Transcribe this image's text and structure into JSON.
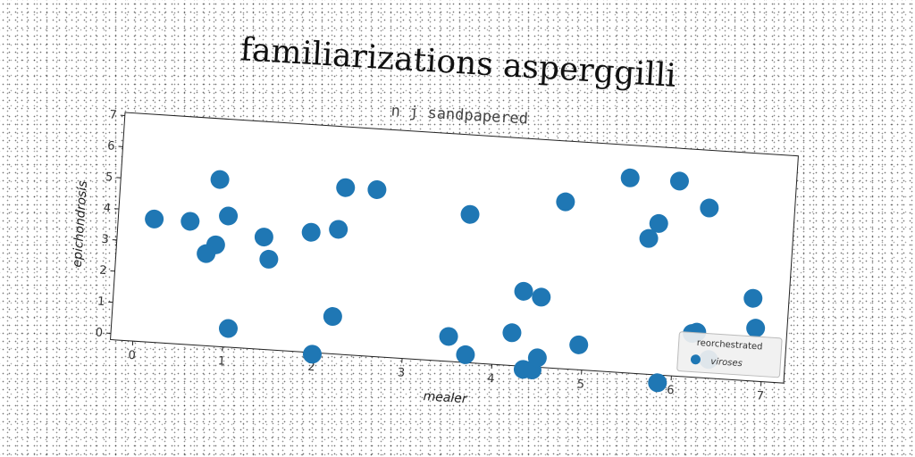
{
  "chart_data": {
    "type": "scatter",
    "title": "familiarizations asperggilli",
    "subtitle": "n j sandpapered",
    "xlabel": "mealer",
    "ylabel": "epichondrosis",
    "xlim": [
      -0.25,
      7.25
    ],
    "ylim": [
      -0.2,
      7.1
    ],
    "xticks": [
      "0",
      "1",
      "2",
      "3",
      "4",
      "5",
      "6",
      "7"
    ],
    "yticks": [
      "0",
      "1",
      "2",
      "3",
      "4",
      "5",
      "6",
      "7"
    ],
    "grid": false,
    "legend": {
      "title": "reorchestrated",
      "placement": "lower-right"
    },
    "series": [
      {
        "name": "viroses",
        "color": "#1f77b4",
        "points": [
          [
            0.15,
            3.75
          ],
          [
            0.55,
            3.75
          ],
          [
            0.85,
            5.15
          ],
          [
            0.97,
            4.0
          ],
          [
            0.85,
            3.05
          ],
          [
            0.75,
            2.75
          ],
          [
            1.05,
            0.4
          ],
          [
            1.38,
            3.4
          ],
          [
            1.45,
            2.7
          ],
          [
            1.9,
            3.65
          ],
          [
            2.2,
            3.8
          ],
          [
            2.25,
            5.15
          ],
          [
            2.6,
            5.15
          ],
          [
            2.2,
            1.0
          ],
          [
            2.0,
            -0.25
          ],
          [
            3.5,
            0.6
          ],
          [
            3.65,
            4.55
          ],
          [
            3.7,
            0.05
          ],
          [
            4.2,
            0.85
          ],
          [
            4.3,
            2.2
          ],
          [
            4.35,
            -0.3
          ],
          [
            4.45,
            -0.3
          ],
          [
            4.5,
            2.05
          ],
          [
            4.5,
            0.1
          ],
          [
            4.7,
            5.15
          ],
          [
            4.95,
            0.6
          ],
          [
            5.4,
            6.05
          ],
          [
            5.65,
            4.15
          ],
          [
            5.75,
            4.65
          ],
          [
            5.95,
            6.05
          ],
          [
            5.85,
            -0.45
          ],
          [
            6.2,
            1.2
          ],
          [
            6.25,
            1.25
          ],
          [
            6.3,
            5.25
          ],
          [
            6.4,
            0.4
          ],
          [
            6.85,
            2.45
          ],
          [
            6.9,
            1.5
          ]
        ]
      }
    ]
  }
}
